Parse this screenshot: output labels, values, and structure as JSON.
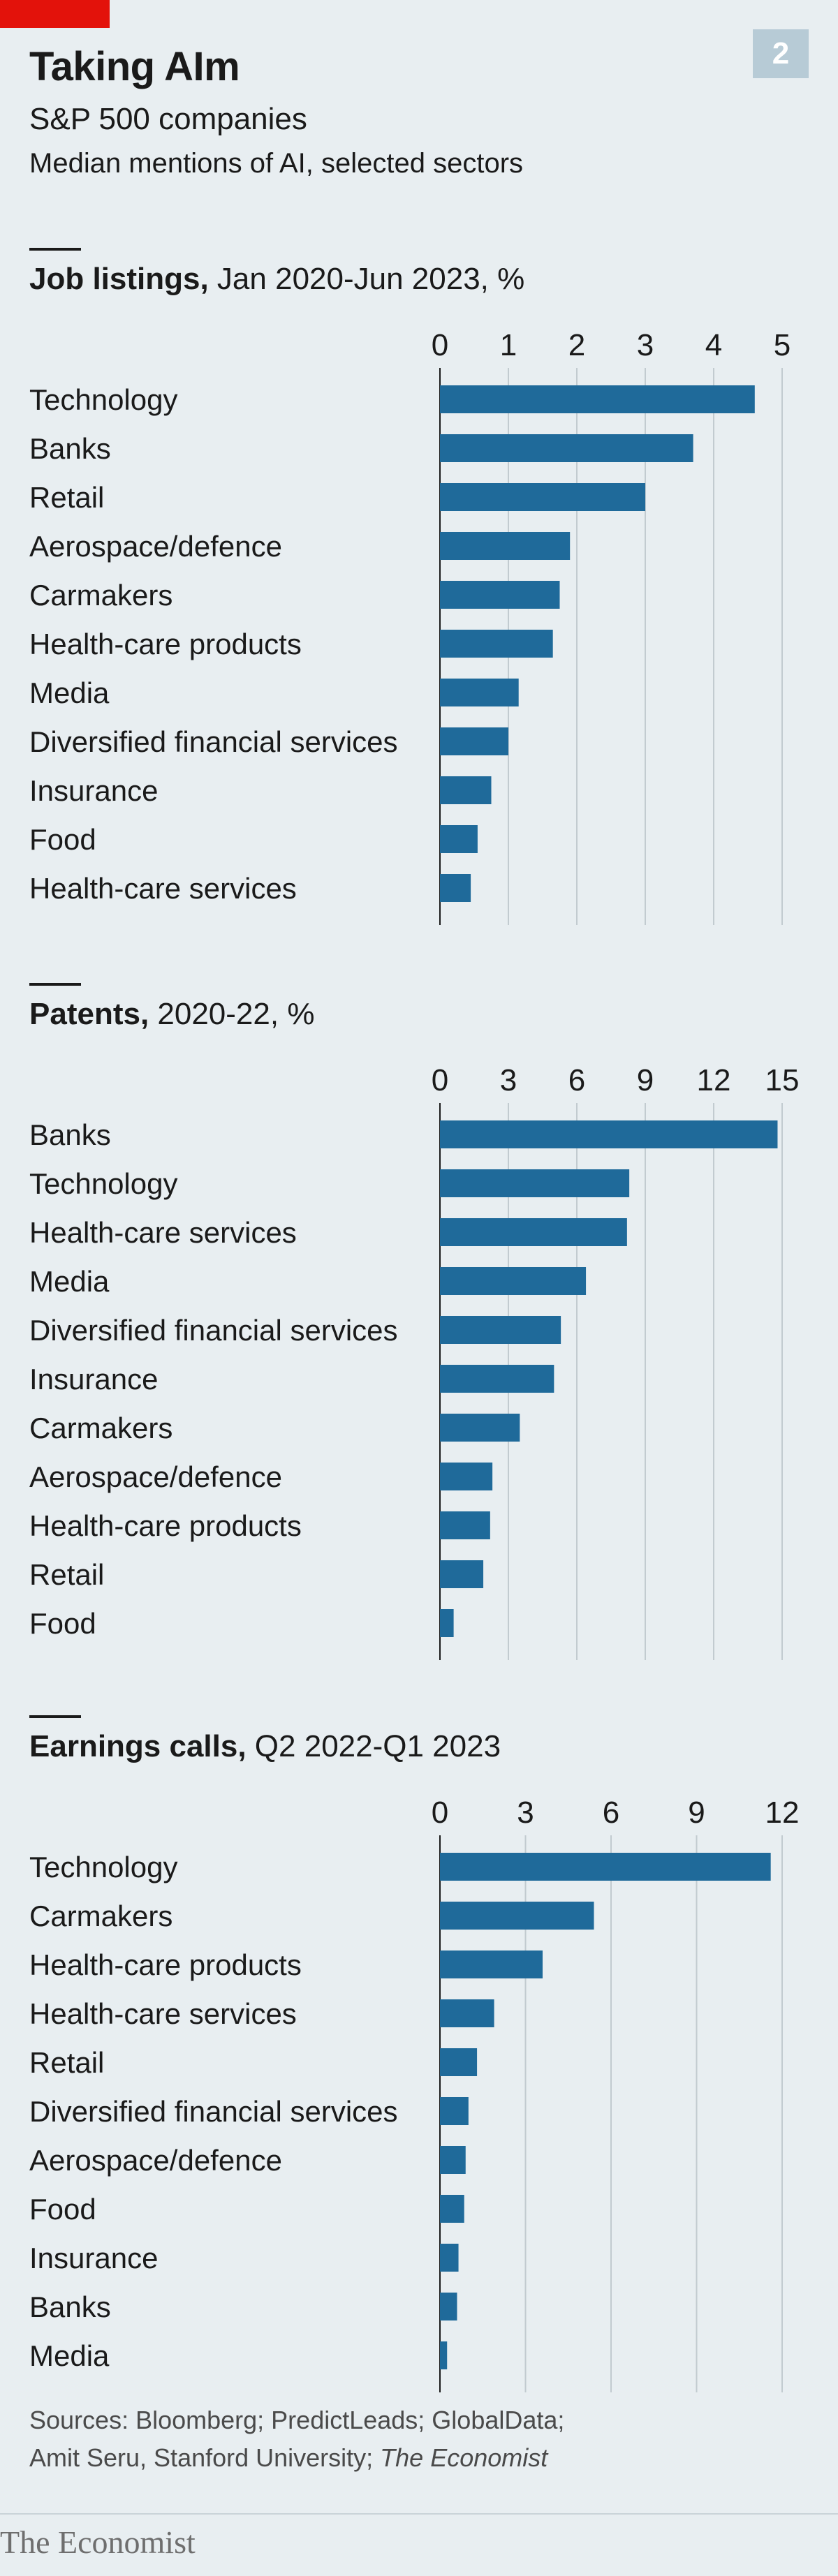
{
  "header": {
    "title": "Taking AIm",
    "subtitle": "S&P 500 companies",
    "subtitle2": "Median mentions of AI, selected sectors",
    "badge": "2"
  },
  "chart_data": [
    {
      "type": "bar",
      "orientation": "horizontal",
      "title": "Job listings,",
      "title_suffix": "Jan 2020-Jun 2023, %",
      "xlim": [
        0,
        5
      ],
      "ticks": [
        0,
        1,
        2,
        3,
        4,
        5
      ],
      "categories": [
        "Technology",
        "Banks",
        "Retail",
        "Aerospace/defence",
        "Carmakers",
        "Health-care products",
        "Media",
        "Diversified financial services",
        "Insurance",
        "Food",
        "Health-care services"
      ],
      "values": [
        4.6,
        3.7,
        3.0,
        1.9,
        1.75,
        1.65,
        1.15,
        1.0,
        0.75,
        0.55,
        0.45
      ],
      "grid": true
    },
    {
      "type": "bar",
      "orientation": "horizontal",
      "title": "Patents,",
      "title_suffix": "2020-22, %",
      "xlim": [
        0,
        15
      ],
      "ticks": [
        0,
        3,
        6,
        9,
        12,
        15
      ],
      "categories": [
        "Banks",
        "Technology",
        "Health-care services",
        "Media",
        "Diversified financial services",
        "Insurance",
        "Carmakers",
        "Aerospace/defence",
        "Health-care products",
        "Retail",
        "Food"
      ],
      "values": [
        14.8,
        8.3,
        8.2,
        6.4,
        5.3,
        5.0,
        3.5,
        2.3,
        2.2,
        1.9,
        0.6
      ],
      "grid": true
    },
    {
      "type": "bar",
      "orientation": "horizontal",
      "title": "Earnings calls,",
      "title_suffix": "Q2 2022-Q1 2023",
      "xlim": [
        0,
        12
      ],
      "ticks": [
        0,
        3,
        6,
        9,
        12
      ],
      "categories": [
        "Technology",
        "Carmakers",
        "Health-care products",
        "Health-care services",
        "Retail",
        "Diversified financial services",
        "Aerospace/defence",
        "Food",
        "Insurance",
        "Banks",
        "Media"
      ],
      "values": [
        11.6,
        5.4,
        3.6,
        1.9,
        1.3,
        1.0,
        0.9,
        0.85,
        0.65,
        0.6,
        0.25
      ],
      "grid": true
    }
  ],
  "colors": {
    "bar": "#1f6a9a",
    "grid": "#c2cbd0",
    "background": "#e8eef1",
    "accent": "#e3120b"
  },
  "footer": {
    "source_line1": "Sources: Bloomberg; PredictLeads; GlobalData;",
    "source_line2_prefix": "Amit Seru, Stanford University; ",
    "source_line2_italic": "The Economist",
    "logo": "The Economist"
  }
}
